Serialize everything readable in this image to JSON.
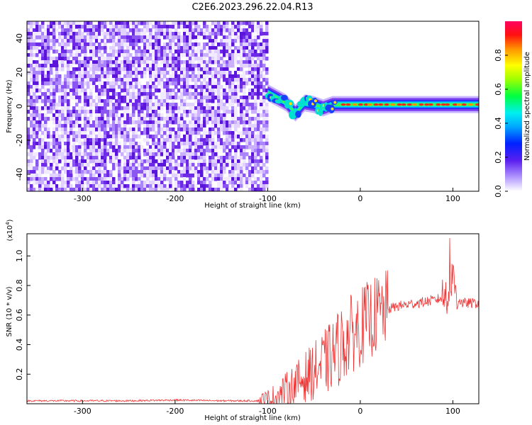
{
  "title": "C2E6.2023.296.22.04.R13",
  "chart_data": [
    {
      "type": "heatmap",
      "xlabel": "Height of straight line (km)",
      "ylabel": "Frequency (Hz)",
      "xlim": [
        -360,
        128
      ],
      "ylim": [
        -50,
        50
      ],
      "xticks": [
        -300,
        -200,
        -100,
        0,
        100
      ],
      "yticks": [
        -40,
        -20,
        0,
        20,
        40
      ],
      "noise_region_x": [
        -360,
        -100
      ],
      "signal_track": [
        {
          "x": -100,
          "y": 8
        },
        {
          "x": -90,
          "y": 5
        },
        {
          "x": -80,
          "y": 2
        },
        {
          "x": -70,
          "y": -4
        },
        {
          "x": -60,
          "y": 2
        },
        {
          "x": -50,
          "y": 1
        },
        {
          "x": -40,
          "y": -1
        },
        {
          "x": -30,
          "y": 1
        },
        {
          "x": 0,
          "y": 1
        },
        {
          "x": 50,
          "y": 1
        },
        {
          "x": 100,
          "y": 1
        },
        {
          "x": 128,
          "y": 1
        }
      ],
      "colorbar": {
        "label": "Normalized spectral amplitude",
        "ticks": [
          "0.0",
          "0.2",
          "0.4",
          "0.6",
          "0.8"
        ],
        "range": [
          0,
          1
        ]
      }
    },
    {
      "type": "line",
      "xlabel": "Height of straight line (km)",
      "ylabel": "SNR (10 * v/v)",
      "scale_label": "(x10",
      "scale_exp": "4",
      "scale_close": ")",
      "xlim": [
        -360,
        128
      ],
      "ylim": [
        0,
        1.15
      ],
      "xticks": [
        -300,
        -200,
        -100,
        0,
        100
      ],
      "yticks": [
        "0.2",
        "0.4",
        "0.6",
        "0.8",
        "1.0"
      ],
      "color": "#ee3333",
      "series": [
        {
          "x": [
            -360,
            -300,
            -250,
            -200,
            -150,
            -110,
            -100,
            -90,
            -80,
            -70,
            -60,
            -50,
            -40,
            -30,
            -20,
            -10,
            0,
            10,
            20,
            30,
            40,
            50,
            60,
            70,
            80,
            90,
            95,
            100,
            105,
            110,
            120,
            128
          ],
          "y": [
            0.02,
            0.02,
            0.02,
            0.025,
            0.02,
            0.02,
            0.025,
            0.05,
            0.09,
            0.13,
            0.18,
            0.22,
            0.27,
            0.33,
            0.4,
            0.47,
            0.52,
            0.57,
            0.61,
            0.64,
            0.66,
            0.67,
            0.68,
            0.69,
            0.7,
            0.72,
            0.76,
            0.85,
            0.72,
            0.68,
            0.68,
            0.68
          ]
        }
      ]
    }
  ]
}
